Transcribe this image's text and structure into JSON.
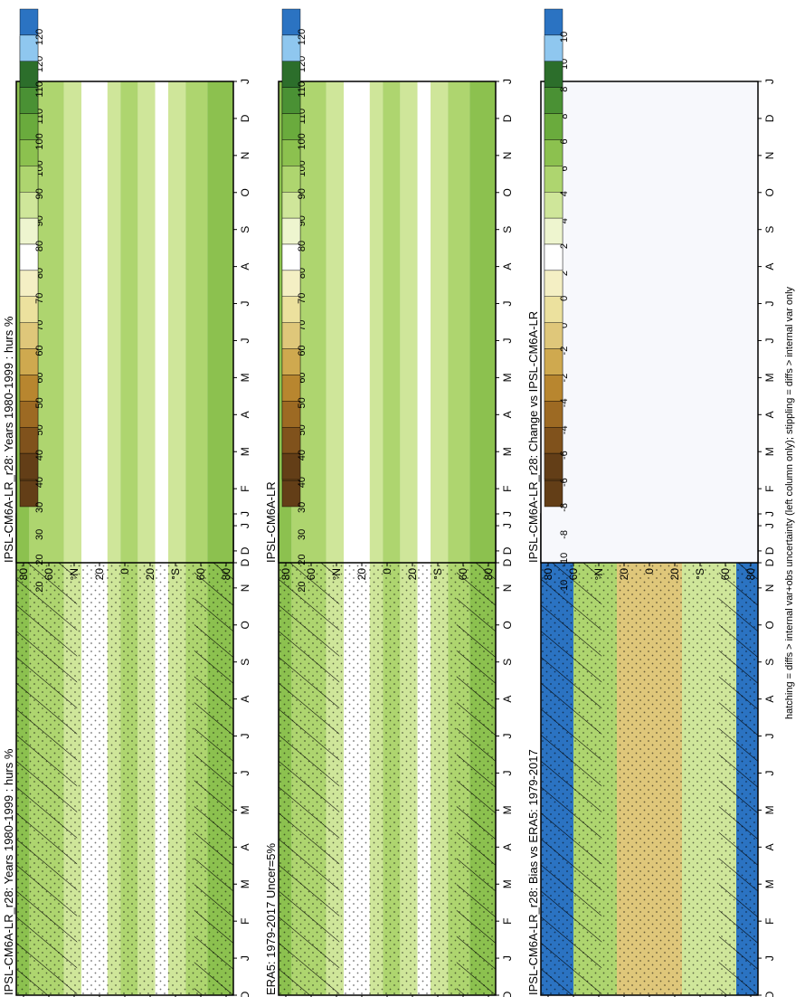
{
  "figure": {
    "footer": "hatching = diffs > internal var+obs uncertainty (left column only); stippling = diffs > internal var only"
  },
  "colors": {
    "abs_scale": [
      "#ffffff"
    ],
    "frame": "#000000"
  },
  "colorbars": [
    {
      "id": "cb-abs",
      "labels": [
        "120",
        "110",
        "100",
        "90",
        "80",
        "70",
        "60",
        "50",
        "40",
        "30",
        "20"
      ],
      "colors": [
        "#2b73c2",
        "#8fc7ef",
        "#2c6e2b",
        "#4a9134",
        "#6aab3d",
        "#8cc14f",
        "#aed56f",
        "#cfe69a",
        "#eef5cf",
        "#ffffff",
        "#f4efc4",
        "#ece19e",
        "#dfc77a",
        "#cfa94f",
        "#b8862f",
        "#9d6a23",
        "#80521c",
        "#633e17"
      ]
    },
    {
      "id": "cb-diff",
      "labels": [
        "10",
        "8",
        "6",
        "4",
        "2",
        "0",
        "-2",
        "-4",
        "-6",
        "-8",
        "-10"
      ],
      "colors": [
        "#2b73c2",
        "#8fc7ef",
        "#2c6e2b",
        "#4a9134",
        "#6aab3d",
        "#8cc14f",
        "#aed56f",
        "#cfe69a",
        "#eef5cf",
        "#ffffff",
        "#f4efc4",
        "#ece19e",
        "#dfc77a",
        "#cfa94f",
        "#b8862f",
        "#9d6a23",
        "#80521c",
        "#633e17"
      ]
    }
  ],
  "axes": {
    "months": [
      "D",
      "J",
      "F",
      "M",
      "A",
      "M",
      "J",
      "J",
      "A",
      "S",
      "O",
      "N",
      "D",
      "J"
    ],
    "lat_labels": [
      "80",
      "60",
      "°N",
      "20",
      "0",
      "20",
      "°S",
      "60",
      "80"
    ]
  },
  "chart_data": [
    {
      "id": "panel-model",
      "type": "heatmap",
      "title": "IPSL-CM6A-LR_r28: Years 1980-1999 : hurs %",
      "x": [
        "D",
        "J",
        "F",
        "M",
        "A",
        "M",
        "J",
        "J",
        "A",
        "S",
        "O",
        "N",
        "D",
        "J"
      ],
      "y": [
        "80",
        "60",
        "°N",
        "20",
        "0",
        "20",
        "°S",
        "60",
        "80"
      ],
      "colorbar": "cb-abs",
      "hatching": true,
      "stippling": true
    },
    {
      "id": "panel-obs",
      "type": "heatmap",
      "title": "ERA5: 1979-2017 Uncer=5%",
      "x": [
        "D",
        "J",
        "F",
        "M",
        "A",
        "M",
        "J",
        "J",
        "A",
        "S",
        "O",
        "N",
        "D",
        "J"
      ],
      "y": [
        "80",
        "60",
        "°N",
        "20",
        "0",
        "20",
        "°S",
        "60",
        "80"
      ],
      "colorbar": "cb-abs",
      "hatching": true,
      "stippling": true
    },
    {
      "id": "panel-bias",
      "type": "heatmap",
      "title": "IPSL-CM6A-LR_r28: Bias vs ERA5: 1979-2017",
      "x": [
        "D",
        "J",
        "F",
        "M",
        "A",
        "M",
        "J",
        "J",
        "A",
        "S",
        "O",
        "N",
        "D",
        "J"
      ],
      "y": [
        "80",
        "60",
        "°N",
        "20",
        "0",
        "20",
        "°S",
        "60",
        "80"
      ],
      "colorbar": "cb-diff",
      "hatching": true,
      "stippling": true
    },
    {
      "id": "panel-model-r",
      "type": "heatmap",
      "title": "IPSL-CM6A-LR_r28: Years 1980-1999 : hurs %",
      "x": [
        "D",
        "J",
        "F",
        "M",
        "A",
        "M",
        "J",
        "J",
        "A",
        "S",
        "O",
        "N",
        "D",
        "J"
      ],
      "y": [
        "80",
        "60",
        "°N",
        "20",
        "0",
        "20",
        "°S",
        "60",
        "80"
      ],
      "colorbar": "cb-abs",
      "hatching": false,
      "stippling": true
    },
    {
      "id": "panel-ens",
      "type": "heatmap",
      "title": "IPSL-CM6A-LR",
      "x": [
        "D",
        "J",
        "F",
        "M",
        "A",
        "M",
        "J",
        "J",
        "A",
        "S",
        "O",
        "N",
        "D",
        "J"
      ],
      "y": [
        "80",
        "60",
        "°N",
        "20",
        "0",
        "20",
        "°S",
        "60",
        "80"
      ],
      "colorbar": "cb-abs",
      "hatching": false,
      "stippling": true
    },
    {
      "id": "panel-change",
      "type": "heatmap",
      "title": "IPSL-CM6A-LR_r28: Change vs IPSL-CM6A-LR",
      "x": [
        "D",
        "J",
        "F",
        "M",
        "A",
        "M",
        "J",
        "J",
        "A",
        "S",
        "O",
        "N",
        "D",
        "J"
      ],
      "y": [
        "80",
        "60",
        "°N",
        "20",
        "0",
        "20",
        "°S",
        "60",
        "80"
      ],
      "colorbar": "cb-diff",
      "hatching": false,
      "stippling": true
    }
  ]
}
